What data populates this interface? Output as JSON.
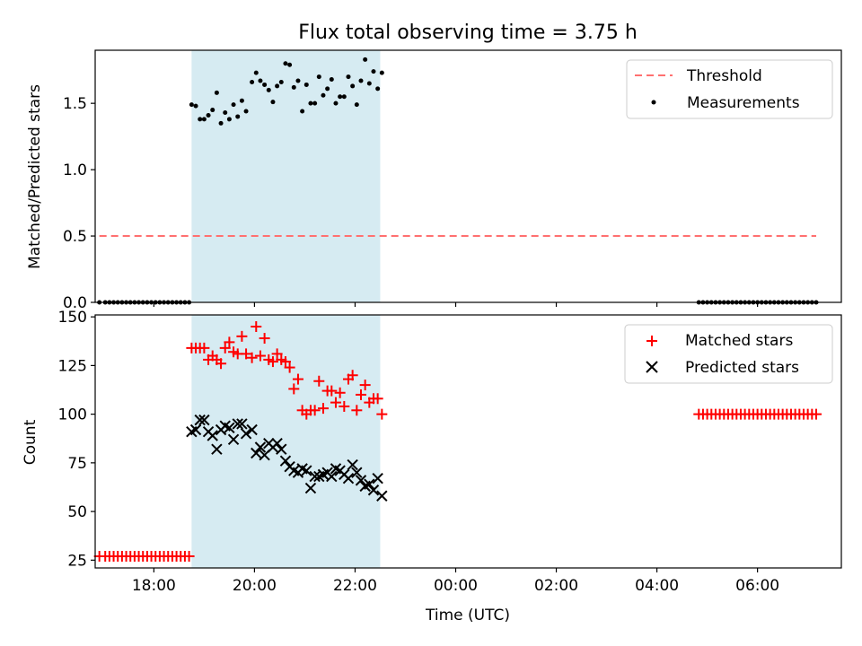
{
  "title": "Flux total observing time = 3.75 h",
  "colors": {
    "observing_window": "#add8e6",
    "threshold": "#ff7070",
    "measurements": "#000000",
    "matched": "#ff0000",
    "predicted": "#000000"
  },
  "chart_data": [
    {
      "type": "scatter",
      "panel": "top",
      "xlabel": "",
      "ylabel": "Matched/Predicted stars",
      "xlim": [
        "16:50",
        "07:40"
      ],
      "ylim": [
        0.0,
        1.9
      ],
      "y_ticks": [
        "0.0",
        "0.5",
        "1.0",
        "1.5"
      ],
      "x_ticks_labels_visible": false,
      "legend": {
        "placement": "upper right",
        "entries": [
          {
            "label": "Threshold",
            "marker": "dashed-line",
            "color": "#ff7070"
          },
          {
            "label": "Measurements",
            "marker": "dot",
            "color": "#000000"
          }
        ]
      },
      "shaded_interval": {
        "start": "18:45",
        "end": "22:30",
        "color": "#add8e6"
      },
      "threshold": {
        "name": "Threshold",
        "y": 0.5,
        "x_start": "16:55",
        "x_end": "07:10"
      },
      "series": [
        {
          "name": "Measurements",
          "points": [
            [
              "16:55",
              0.0
            ],
            [
              "17:02",
              0.0
            ],
            [
              "17:07",
              0.0
            ],
            [
              "17:12",
              0.0
            ],
            [
              "17:17",
              0.0
            ],
            [
              "17:22",
              0.0
            ],
            [
              "17:27",
              0.0
            ],
            [
              "17:32",
              0.0
            ],
            [
              "17:37",
              0.0
            ],
            [
              "17:42",
              0.0
            ],
            [
              "17:47",
              0.0
            ],
            [
              "17:52",
              0.0
            ],
            [
              "17:57",
              0.0
            ],
            [
              "18:02",
              0.0
            ],
            [
              "18:07",
              0.0
            ],
            [
              "18:12",
              0.0
            ],
            [
              "18:17",
              0.0
            ],
            [
              "18:22",
              0.0
            ],
            [
              "18:27",
              0.0
            ],
            [
              "18:32",
              0.0
            ],
            [
              "18:37",
              0.0
            ],
            [
              "18:42",
              0.0
            ],
            [
              "18:45",
              1.49
            ],
            [
              "18:50",
              1.48
            ],
            [
              "18:55",
              1.38
            ],
            [
              "19:00",
              1.38
            ],
            [
              "19:05",
              1.41
            ],
            [
              "19:10",
              1.45
            ],
            [
              "19:15",
              1.58
            ],
            [
              "19:20",
              1.35
            ],
            [
              "19:25",
              1.43
            ],
            [
              "19:30",
              1.38
            ],
            [
              "19:35",
              1.49
            ],
            [
              "19:40",
              1.4
            ],
            [
              "19:45",
              1.52
            ],
            [
              "19:50",
              1.44
            ],
            [
              "19:57",
              1.66
            ],
            [
              "20:02",
              1.73
            ],
            [
              "20:07",
              1.67
            ],
            [
              "20:12",
              1.64
            ],
            [
              "20:17",
              1.6
            ],
            [
              "20:22",
              1.51
            ],
            [
              "20:27",
              1.63
            ],
            [
              "20:32",
              1.66
            ],
            [
              "20:37",
              1.8
            ],
            [
              "20:42",
              1.79
            ],
            [
              "20:47",
              1.62
            ],
            [
              "20:52",
              1.67
            ],
            [
              "20:57",
              1.44
            ],
            [
              "21:02",
              1.64
            ],
            [
              "21:07",
              1.5
            ],
            [
              "21:12",
              1.5
            ],
            [
              "21:17",
              1.7
            ],
            [
              "21:22",
              1.56
            ],
            [
              "21:27",
              1.61
            ],
            [
              "21:32",
              1.68
            ],
            [
              "21:37",
              1.5
            ],
            [
              "21:42",
              1.55
            ],
            [
              "21:47",
              1.55
            ],
            [
              "21:52",
              1.7
            ],
            [
              "21:57",
              1.63
            ],
            [
              "22:02",
              1.49
            ],
            [
              "22:07",
              1.67
            ],
            [
              "22:12",
              1.83
            ],
            [
              "22:17",
              1.65
            ],
            [
              "22:22",
              1.74
            ],
            [
              "22:27",
              1.61
            ],
            [
              "22:32",
              1.73
            ],
            [
              "04:50",
              0.0
            ],
            [
              "04:55",
              0.0
            ],
            [
              "05:00",
              0.0
            ],
            [
              "05:05",
              0.0
            ],
            [
              "05:10",
              0.0
            ],
            [
              "05:15",
              0.0
            ],
            [
              "05:20",
              0.0
            ],
            [
              "05:25",
              0.0
            ],
            [
              "05:30",
              0.0
            ],
            [
              "05:35",
              0.0
            ],
            [
              "05:40",
              0.0
            ],
            [
              "05:45",
              0.0
            ],
            [
              "05:50",
              0.0
            ],
            [
              "05:55",
              0.0
            ],
            [
              "06:00",
              0.0
            ],
            [
              "06:05",
              0.0
            ],
            [
              "06:10",
              0.0
            ],
            [
              "06:15",
              0.0
            ],
            [
              "06:20",
              0.0
            ],
            [
              "06:25",
              0.0
            ],
            [
              "06:30",
              0.0
            ],
            [
              "06:35",
              0.0
            ],
            [
              "06:40",
              0.0
            ],
            [
              "06:45",
              0.0
            ],
            [
              "06:50",
              0.0
            ],
            [
              "06:55",
              0.0
            ],
            [
              "07:00",
              0.0
            ],
            [
              "07:05",
              0.0
            ],
            [
              "07:10",
              0.0
            ]
          ]
        }
      ]
    },
    {
      "type": "scatter",
      "panel": "bottom",
      "xlabel": "Time (UTC)",
      "ylabel": "Count",
      "xlim": [
        "16:50",
        "07:40"
      ],
      "ylim": [
        21,
        151
      ],
      "x_ticks": [
        "18:00",
        "20:00",
        "22:00",
        "00:00",
        "02:00",
        "04:00",
        "06:00"
      ],
      "y_ticks": [
        "25",
        "50",
        "75",
        "100",
        "125",
        "150"
      ],
      "legend": {
        "placement": "upper right",
        "entries": [
          {
            "label": "Matched stars",
            "marker": "plus",
            "color": "#ff0000"
          },
          {
            "label": "Predicted stars",
            "marker": "x",
            "color": "#000000"
          }
        ]
      },
      "shaded_interval": {
        "start": "18:45",
        "end": "22:30",
        "color": "#add8e6"
      },
      "series": [
        {
          "name": "Matched stars",
          "points": [
            [
              "16:55",
              27
            ],
            [
              "17:02",
              27
            ],
            [
              "17:07",
              27
            ],
            [
              "17:12",
              27
            ],
            [
              "17:17",
              27
            ],
            [
              "17:22",
              27
            ],
            [
              "17:27",
              27
            ],
            [
              "17:32",
              27
            ],
            [
              "17:37",
              27
            ],
            [
              "17:42",
              27
            ],
            [
              "17:47",
              27
            ],
            [
              "17:52",
              27
            ],
            [
              "17:57",
              27
            ],
            [
              "18:02",
              27
            ],
            [
              "18:07",
              27
            ],
            [
              "18:12",
              27
            ],
            [
              "18:17",
              27
            ],
            [
              "18:22",
              27
            ],
            [
              "18:27",
              27
            ],
            [
              "18:32",
              27
            ],
            [
              "18:37",
              27
            ],
            [
              "18:42",
              27
            ],
            [
              "18:45",
              134
            ],
            [
              "18:50",
              134
            ],
            [
              "18:55",
              134
            ],
            [
              "19:00",
              134
            ],
            [
              "19:05",
              128
            ],
            [
              "19:10",
              130
            ],
            [
              "19:15",
              128
            ],
            [
              "19:20",
              126
            ],
            [
              "19:25",
              134
            ],
            [
              "19:30",
              137
            ],
            [
              "19:35",
              132
            ],
            [
              "19:40",
              131
            ],
            [
              "19:45",
              140
            ],
            [
              "19:50",
              131
            ],
            [
              "19:57",
              129
            ],
            [
              "20:02",
              145
            ],
            [
              "20:07",
              130
            ],
            [
              "20:12",
              139
            ],
            [
              "20:17",
              128
            ],
            [
              "20:22",
              127
            ],
            [
              "20:27",
              131
            ],
            [
              "20:32",
              128
            ],
            [
              "20:37",
              127
            ],
            [
              "20:42",
              124
            ],
            [
              "20:47",
              113
            ],
            [
              "20:52",
              118
            ],
            [
              "20:57",
              102
            ],
            [
              "21:02",
              100
            ],
            [
              "21:07",
              102
            ],
            [
              "21:12",
              102
            ],
            [
              "21:17",
              117
            ],
            [
              "21:22",
              103
            ],
            [
              "21:27",
              112
            ],
            [
              "21:32",
              112
            ],
            [
              "21:37",
              106
            ],
            [
              "21:42",
              111
            ],
            [
              "21:47",
              104
            ],
            [
              "21:52",
              118
            ],
            [
              "21:57",
              120
            ],
            [
              "22:02",
              102
            ],
            [
              "22:07",
              110
            ],
            [
              "22:12",
              115
            ],
            [
              "22:17",
              106
            ],
            [
              "22:22",
              108
            ],
            [
              "22:27",
              108
            ],
            [
              "22:32",
              100
            ],
            [
              "04:50",
              100
            ],
            [
              "04:55",
              100
            ],
            [
              "05:00",
              100
            ],
            [
              "05:05",
              100
            ],
            [
              "05:10",
              100
            ],
            [
              "05:15",
              100
            ],
            [
              "05:20",
              100
            ],
            [
              "05:25",
              100
            ],
            [
              "05:30",
              100
            ],
            [
              "05:35",
              100
            ],
            [
              "05:40",
              100
            ],
            [
              "05:45",
              100
            ],
            [
              "05:50",
              100
            ],
            [
              "05:55",
              100
            ],
            [
              "06:00",
              100
            ],
            [
              "06:05",
              100
            ],
            [
              "06:10",
              100
            ],
            [
              "06:15",
              100
            ],
            [
              "06:20",
              100
            ],
            [
              "06:25",
              100
            ],
            [
              "06:30",
              100
            ],
            [
              "06:35",
              100
            ],
            [
              "06:40",
              100
            ],
            [
              "06:45",
              100
            ],
            [
              "06:50",
              100
            ],
            [
              "06:55",
              100
            ],
            [
              "07:00",
              100
            ],
            [
              "07:05",
              100
            ],
            [
              "07:10",
              100
            ]
          ]
        },
        {
          "name": "Predicted stars",
          "points": [
            [
              "18:45",
              91
            ],
            [
              "18:50",
              92
            ],
            [
              "18:55",
              97
            ],
            [
              "19:00",
              97
            ],
            [
              "19:05",
              91
            ],
            [
              "19:10",
              89
            ],
            [
              "19:15",
              82
            ],
            [
              "19:20",
              92
            ],
            [
              "19:25",
              94
            ],
            [
              "19:30",
              93
            ],
            [
              "19:35",
              87
            ],
            [
              "19:40",
              95
            ],
            [
              "19:45",
              95
            ],
            [
              "19:50",
              90
            ],
            [
              "19:57",
              92
            ],
            [
              "20:02",
              80
            ],
            [
              "20:07",
              83
            ],
            [
              "20:12",
              79
            ],
            [
              "20:17",
              85
            ],
            [
              "20:22",
              83
            ],
            [
              "20:27",
              85
            ],
            [
              "20:32",
              82
            ],
            [
              "20:37",
              76
            ],
            [
              "20:42",
              73
            ],
            [
              "20:47",
              71
            ],
            [
              "20:52",
              70
            ],
            [
              "20:57",
              72
            ],
            [
              "21:02",
              71
            ],
            [
              "21:07",
              62
            ],
            [
              "21:12",
              68
            ],
            [
              "21:17",
              68
            ],
            [
              "21:22",
              69
            ],
            [
              "21:27",
              70
            ],
            [
              "21:32",
              68
            ],
            [
              "21:37",
              72
            ],
            [
              "21:42",
              71
            ],
            [
              "21:47",
              69
            ],
            [
              "21:52",
              67
            ],
            [
              "21:57",
              74
            ],
            [
              "22:02",
              70
            ],
            [
              "22:07",
              66
            ],
            [
              "22:12",
              63
            ],
            [
              "22:17",
              64
            ],
            [
              "22:22",
              61
            ],
            [
              "22:27",
              67
            ],
            [
              "22:32",
              58
            ]
          ]
        }
      ]
    }
  ]
}
